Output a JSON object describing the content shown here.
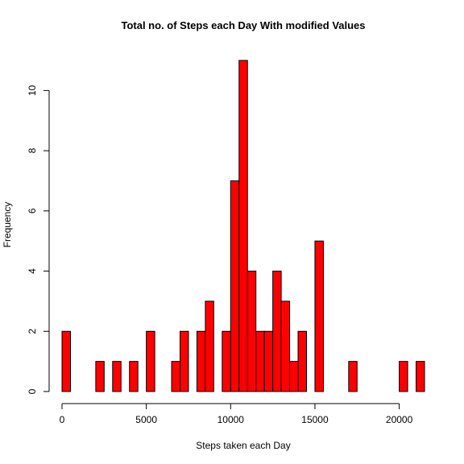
{
  "chart_data": {
    "type": "bar",
    "title": "Total no. of Steps each Day With modified Values",
    "xlabel": "Steps taken each Day",
    "ylabel": "Frequency",
    "bar_color": "#ff0000",
    "border_color": "#000000",
    "bin_width": 500,
    "xlim": [
      0,
      21500
    ],
    "ylim": [
      0,
      11
    ],
    "x_ticks": [
      0,
      5000,
      10000,
      15000,
      20000
    ],
    "y_ticks": [
      0,
      2,
      4,
      6,
      8,
      10
    ],
    "bins": [
      {
        "x": 0,
        "y": 2
      },
      {
        "x": 2000,
        "y": 1
      },
      {
        "x": 3000,
        "y": 1
      },
      {
        "x": 4000,
        "y": 1
      },
      {
        "x": 5000,
        "y": 2
      },
      {
        "x": 6500,
        "y": 1
      },
      {
        "x": 7000,
        "y": 2
      },
      {
        "x": 8000,
        "y": 2
      },
      {
        "x": 8500,
        "y": 3
      },
      {
        "x": 9500,
        "y": 2
      },
      {
        "x": 10000,
        "y": 7
      },
      {
        "x": 10500,
        "y": 11
      },
      {
        "x": 11000,
        "y": 4
      },
      {
        "x": 11500,
        "y": 2
      },
      {
        "x": 12000,
        "y": 2
      },
      {
        "x": 12500,
        "y": 4
      },
      {
        "x": 13000,
        "y": 3
      },
      {
        "x": 13500,
        "y": 1
      },
      {
        "x": 14000,
        "y": 2
      },
      {
        "x": 15000,
        "y": 5
      },
      {
        "x": 17000,
        "y": 1
      },
      {
        "x": 20000,
        "y": 1
      },
      {
        "x": 21000,
        "y": 1
      }
    ],
    "grid": false,
    "legend": "none"
  }
}
